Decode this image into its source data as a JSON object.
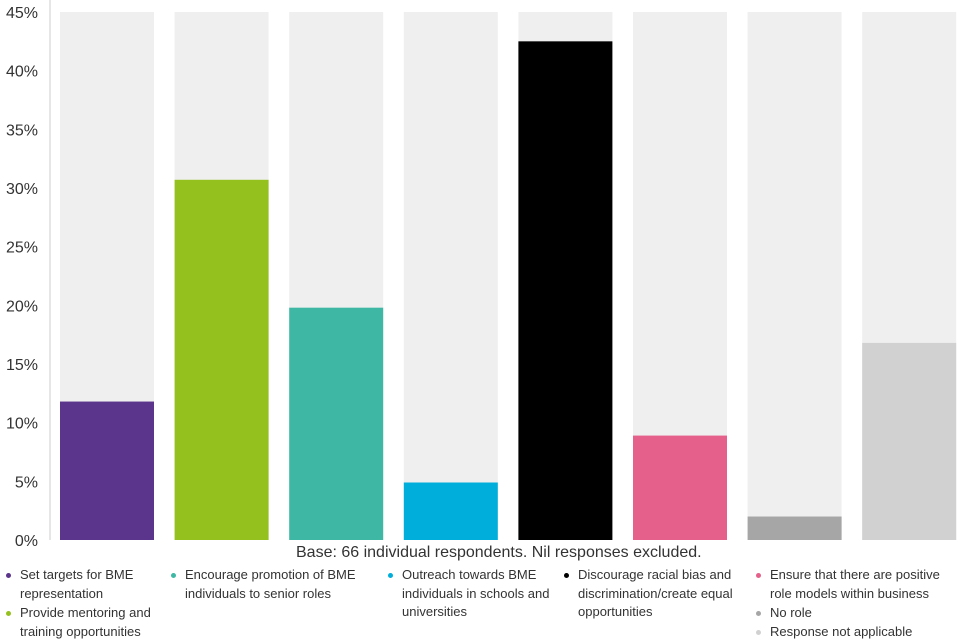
{
  "chart_data": {
    "type": "bar",
    "title": "",
    "xlabel": "",
    "ylabel": "",
    "ylim": [
      0,
      45
    ],
    "yticks": [
      0,
      5,
      10,
      15,
      20,
      25,
      30,
      35,
      40,
      45
    ],
    "ytick_labels": [
      "0%",
      "5%",
      "10%",
      "15%",
      "20%",
      "25%",
      "30%",
      "35%",
      "40%",
      "45%"
    ],
    "grid": false,
    "background_bars": true,
    "legend_placement": "bottom",
    "categories": [
      "Set targets for BME representation",
      "Provide mentoring and training opportunities",
      "Encourage promotion of BME individuals to senior roles",
      "Outreach towards BME individuals in schools and universities",
      "Discourage racial bias and discrimination/create equal opportunities",
      "Ensure that there are positive role models within business",
      "No role",
      "Response not applicable"
    ],
    "values": [
      11.8,
      30.7,
      19.8,
      4.9,
      42.5,
      8.9,
      2.0,
      16.8
    ],
    "colors": [
      "#5b358c",
      "#95c11f",
      "#3eb8a4",
      "#00aedb",
      "#000000",
      "#e5608a",
      "#a6a6a6",
      "#d1d1d1"
    ],
    "background_color": "#efefef",
    "annotation": "Base: 66 individual respondents. Nil responses excluded."
  }
}
